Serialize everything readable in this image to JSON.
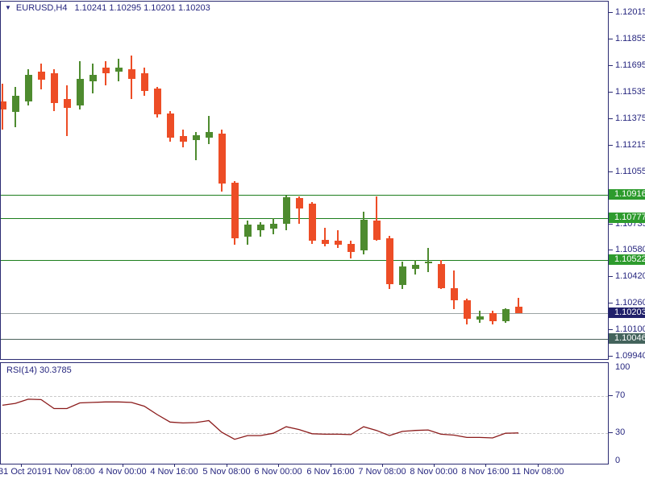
{
  "window": {
    "dropdown_icon": "▼",
    "symbol_period": "EURUSD,H4",
    "ohlc_text": "1.10241 1.10295 1.10201 1.10203"
  },
  "colors": {
    "frame": "#2b2b72",
    "text": "#26267f",
    "bull": "#4e8b2f",
    "bear": "#ed4d26",
    "level_line_green": "#1c7e1c",
    "level_badge_green": "#2d9b2d",
    "current_price_line": "#9ba3a3",
    "current_price_badge": "#20206a",
    "support_line": "#4c625c",
    "support_badge": "#43635c",
    "rsi_line": "#8b1b1b",
    "rsi_guide": "#c9c9c9"
  },
  "chart_data": {
    "type": "candlestick",
    "title": "EURUSD,H4",
    "ohlc_display": {
      "open": "1.10241",
      "high": "1.10295",
      "low": "1.10201",
      "close": "1.10203"
    },
    "price_axis_ticks": [
      "1.12015",
      "1.11855",
      "1.11695",
      "1.11535",
      "1.11375",
      "1.11215",
      "1.11055",
      "1.10895",
      "1.10735",
      "1.10580",
      "1.10420",
      "1.10260",
      "1.10100",
      "1.09940"
    ],
    "ylim": [
      1.0993,
      1.1205
    ],
    "grid": "off",
    "candles_ohlc": [
      [
        1.1148,
        1.11587,
        1.1131,
        1.11432
      ],
      [
        1.11417,
        1.11568,
        1.11325,
        1.11514
      ],
      [
        1.1148,
        1.11675,
        1.11456,
        1.11641
      ],
      [
        1.1166,
        1.11709,
        1.11553,
        1.11612
      ],
      [
        1.11651,
        1.11675,
        1.11422,
        1.11471
      ],
      [
        1.11495,
        1.11578,
        1.11271,
        1.11442
      ],
      [
        1.11456,
        1.11723,
        1.11432,
        1.11617
      ],
      [
        1.11602,
        1.11709,
        1.11529,
        1.11641
      ],
      [
        1.11685,
        1.11723,
        1.11578,
        1.11651
      ],
      [
        1.1166,
        1.11738,
        1.11602,
        1.11685
      ],
      [
        1.11675,
        1.11757,
        1.11495,
        1.11617
      ],
      [
        1.11651,
        1.11685,
        1.11514,
        1.11544
      ],
      [
        1.11558,
        1.11568,
        1.11383,
        1.11403
      ],
      [
        1.11408,
        1.11422,
        1.11237,
        1.11262
      ],
      [
        1.11271,
        1.1131,
        1.11203,
        1.11237
      ],
      [
        1.11247,
        1.11296,
        1.11126,
        1.11276
      ],
      [
        1.11262,
        1.11393,
        1.11223,
        1.11296
      ],
      [
        1.11286,
        1.1131,
        1.10936,
        1.10985
      ],
      [
        1.1099,
        1.10999,
        1.10615,
        1.10654
      ],
      [
        1.10664,
        1.10761,
        1.10615,
        1.10737
      ],
      [
        1.10703,
        1.10751,
        1.10664,
        1.10737
      ],
      [
        1.10713,
        1.10776,
        1.10679,
        1.10742
      ],
      [
        1.10742,
        1.10912,
        1.10703,
        1.10902
      ],
      [
        1.10897,
        1.10907,
        1.10742,
        1.10834
      ],
      [
        1.10863,
        1.10873,
        1.1062,
        1.1064
      ],
      [
        1.10645,
        1.10717,
        1.10606,
        1.1062
      ],
      [
        1.1064,
        1.10703,
        1.10596,
        1.10615
      ],
      [
        1.1062,
        1.1064,
        1.10533,
        1.10572
      ],
      [
        1.10581,
        1.10815,
        1.10557,
        1.10766
      ],
      [
        1.10761,
        1.10907,
        1.1064,
        1.10645
      ],
      [
        1.10654,
        1.10669,
        1.10348,
        1.10377
      ],
      [
        1.10372,
        1.10513,
        1.10348,
        1.10484
      ],
      [
        1.1047,
        1.10523,
        1.10436,
        1.10494
      ],
      [
        1.10504,
        1.10596,
        1.1045,
        1.10513
      ],
      [
        1.10499,
        1.10523,
        1.10348,
        1.10353
      ],
      [
        1.10353,
        1.1046,
        1.10227,
        1.1028
      ],
      [
        1.1028,
        1.1029,
        1.10134,
        1.10168
      ],
      [
        1.10163,
        1.10217,
        1.10144,
        1.10183
      ],
      [
        1.10202,
        1.10217,
        1.10134,
        1.10153
      ],
      [
        1.10153,
        1.10231,
        1.10144,
        1.10226
      ],
      [
        1.10241,
        1.10295,
        1.10201,
        1.10203
      ]
    ],
    "resistance_levels": [
      {
        "price": 1.10916,
        "label": "1.10916"
      },
      {
        "price": 1.10777,
        "label": "1.10777"
      },
      {
        "price": 1.10522,
        "label": "1.10522"
      }
    ],
    "current_price": {
      "price": 1.10203,
      "label": "1.10203"
    },
    "support_level": {
      "price": 1.10046,
      "label": "1.10046"
    },
    "x_axis_labels": [
      "31 Oct 2019",
      "1 Nov 08:00",
      "4 Nov 00:00",
      "4 Nov 16:00",
      "5 Nov 08:00",
      "6 Nov 00:00",
      "6 Nov 16:00",
      "7 Nov 08:00",
      "8 Nov 00:00",
      "8 Nov 16:00",
      "11 Nov 08:00"
    ],
    "x_axis_label_positions": [
      26,
      88,
      152,
      216,
      281,
      345,
      410,
      474,
      538,
      602,
      667
    ],
    "rsi": {
      "name": "RSI(14)",
      "value_display": "30.3785",
      "axis_ticks": [
        "100",
        "70",
        "30",
        "0"
      ],
      "axis_tick_values": [
        100,
        70,
        30,
        0
      ],
      "guides": [
        70,
        30
      ],
      "range": [
        0,
        100
      ],
      "values": [
        60,
        62,
        66.5,
        66,
        56.5,
        56.5,
        62.5,
        63,
        63.5,
        63.5,
        63,
        59,
        50,
        42,
        41,
        41.5,
        43.5,
        31,
        23.5,
        27.5,
        27.5,
        30,
        37,
        34,
        29.5,
        29,
        29,
        28.5,
        37,
        33,
        27.5,
        32,
        33,
        33.5,
        29,
        28,
        25.5,
        25.5,
        25,
        30,
        30.38
      ]
    }
  }
}
